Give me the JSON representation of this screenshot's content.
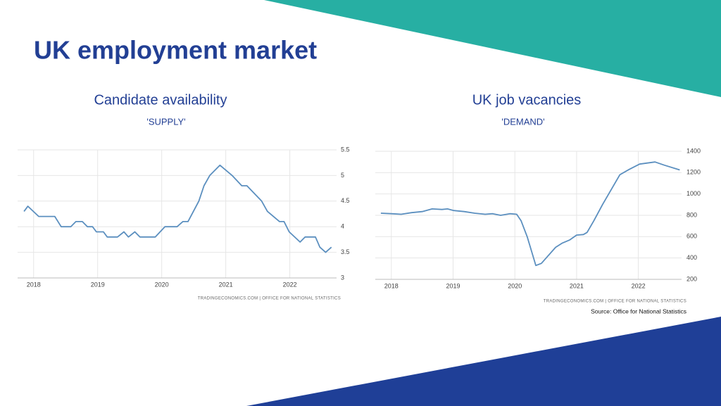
{
  "title": "UK employment market",
  "source": "Source: Office for National Statistics",
  "chart_data": [
    {
      "type": "line",
      "title": "Candidate availability",
      "subtitle": "'SUPPLY'",
      "attribution": "TRADINGECONOMICS.COM  |  OFFICE FOR NATIONAL STATISTICS",
      "color": "#5b8fbf",
      "x": [
        2017.85,
        2017.91,
        2018.08,
        2018.33,
        2018.43,
        2018.58,
        2018.66,
        2018.76,
        2018.84,
        2018.92,
        2018.98,
        2019.09,
        2019.15,
        2019.31,
        2019.41,
        2019.48,
        2019.58,
        2019.66,
        2019.9,
        2020.05,
        2020.24,
        2020.33,
        2020.41,
        2020.58,
        2020.66,
        2020.75,
        2020.91,
        2021.1,
        2021.25,
        2021.33,
        2021.56,
        2021.65,
        2021.84,
        2021.91,
        2021.99,
        2022.16,
        2022.24,
        2022.4,
        2022.47,
        2022.56,
        2022.65
      ],
      "values": [
        4.3,
        4.4,
        4.2,
        4.2,
        4.0,
        4.0,
        4.1,
        4.1,
        4.0,
        4.0,
        3.9,
        3.9,
        3.8,
        3.8,
        3.9,
        3.8,
        3.9,
        3.8,
        3.8,
        4.0,
        4.0,
        4.1,
        4.1,
        4.5,
        4.8,
        5.0,
        5.2,
        5.0,
        4.8,
        4.8,
        4.5,
        4.3,
        4.1,
        4.1,
        3.9,
        3.7,
        3.8,
        3.8,
        3.6,
        3.5,
        3.6
      ],
      "xlim": [
        2017.75,
        2022.73
      ],
      "xticks": [
        2018,
        2019,
        2020,
        2021,
        2022
      ],
      "ylim": [
        3,
        5.5
      ],
      "yticks": [
        3,
        3.5,
        4,
        4.5,
        5,
        5.5
      ],
      "grid": true
    },
    {
      "type": "line",
      "title": "UK job vacancies",
      "subtitle": "'DEMAND'",
      "attribution": "TRADINGECONOMICS.COM  |  OFFICE FOR NATIONAL STATISTICS",
      "color": "#5b8fbf",
      "x": [
        2017.83,
        2018.0,
        2018.16,
        2018.33,
        2018.5,
        2018.66,
        2018.82,
        2018.91,
        2019.01,
        2019.18,
        2019.35,
        2019.52,
        2019.64,
        2019.77,
        2019.92,
        2020.03,
        2020.1,
        2020.2,
        2020.34,
        2020.43,
        2020.66,
        2020.77,
        2020.89,
        2021.0,
        2021.11,
        2021.17,
        2021.28,
        2021.42,
        2021.57,
        2021.7,
        2021.85,
        2022.02,
        2022.27,
        2022.42,
        2022.67
      ],
      "values": [
        820,
        815,
        810,
        825,
        835,
        860,
        855,
        860,
        845,
        835,
        820,
        810,
        815,
        800,
        815,
        810,
        750,
        600,
        330,
        350,
        500,
        540,
        570,
        615,
        620,
        640,
        750,
        900,
        1050,
        1180,
        1230,
        1280,
        1300,
        1270,
        1225
      ],
      "xlim": [
        2017.74,
        2022.7
      ],
      "xticks": [
        2018,
        2019,
        2020,
        2021,
        2022
      ],
      "ylim": [
        200,
        1400
      ],
      "yticks": [
        200,
        400,
        600,
        800,
        1000,
        1200,
        1400
      ],
      "grid": true
    }
  ]
}
